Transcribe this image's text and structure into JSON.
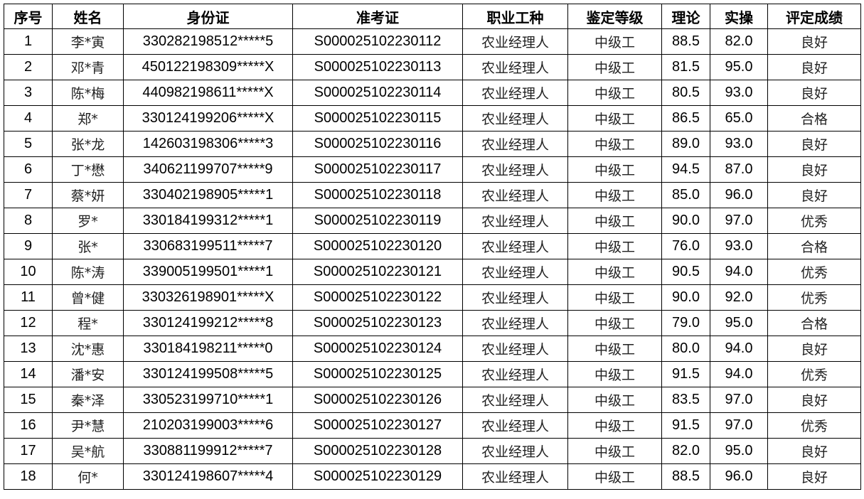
{
  "headers": [
    "序号",
    "姓名",
    "身份证",
    "准考证",
    "职业工种",
    "鉴定等级",
    "理论",
    "实操",
    "评定成绩"
  ],
  "rows": [
    [
      "1",
      "李*寅",
      "330282198512*****5",
      "S000025102230112",
      "农业经理人",
      "中级工",
      "88.5",
      "82.0",
      "良好"
    ],
    [
      "2",
      "邓*青",
      "450122198309*****X",
      "S000025102230113",
      "农业经理人",
      "中级工",
      "81.5",
      "95.0",
      "良好"
    ],
    [
      "3",
      "陈*梅",
      "440982198611*****X",
      "S000025102230114",
      "农业经理人",
      "中级工",
      "80.5",
      "93.0",
      "良好"
    ],
    [
      "4",
      "郑*",
      "330124199206*****X",
      "S000025102230115",
      "农业经理人",
      "中级工",
      "86.5",
      "65.0",
      "合格"
    ],
    [
      "5",
      "张*龙",
      "142603198306*****3",
      "S000025102230116",
      "农业经理人",
      "中级工",
      "89.0",
      "93.0",
      "良好"
    ],
    [
      "6",
      "丁*懋",
      "340621199707*****9",
      "S000025102230117",
      "农业经理人",
      "中级工",
      "94.5",
      "87.0",
      "良好"
    ],
    [
      "7",
      "蔡*妍",
      "330402198905*****1",
      "S000025102230118",
      "农业经理人",
      "中级工",
      "85.0",
      "96.0",
      "良好"
    ],
    [
      "8",
      "罗*",
      "330184199312*****1",
      "S000025102230119",
      "农业经理人",
      "中级工",
      "90.0",
      "97.0",
      "优秀"
    ],
    [
      "9",
      "张*",
      "330683199511*****7",
      "S000025102230120",
      "农业经理人",
      "中级工",
      "76.0",
      "93.0",
      "合格"
    ],
    [
      "10",
      "陈*涛",
      "339005199501*****1",
      "S000025102230121",
      "农业经理人",
      "中级工",
      "90.5",
      "94.0",
      "优秀"
    ],
    [
      "11",
      "曾*健",
      "330326198901*****X",
      "S000025102230122",
      "农业经理人",
      "中级工",
      "90.0",
      "92.0",
      "优秀"
    ],
    [
      "12",
      "程*",
      "330124199212*****8",
      "S000025102230123",
      "农业经理人",
      "中级工",
      "79.0",
      "95.0",
      "合格"
    ],
    [
      "13",
      "沈*惠",
      "330184198211*****0",
      "S000025102230124",
      "农业经理人",
      "中级工",
      "80.0",
      "94.0",
      "良好"
    ],
    [
      "14",
      "潘*安",
      "330124199508*****5",
      "S000025102230125",
      "农业经理人",
      "中级工",
      "91.5",
      "94.0",
      "优秀"
    ],
    [
      "15",
      "秦*泽",
      "330523199710*****1",
      "S000025102230126",
      "农业经理人",
      "中级工",
      "83.5",
      "97.0",
      "良好"
    ],
    [
      "16",
      "尹*慧",
      "210203199003*****6",
      "S000025102230127",
      "农业经理人",
      "中级工",
      "91.5",
      "97.0",
      "优秀"
    ],
    [
      "17",
      "吴*航",
      "330881199912*****7",
      "S000025102230128",
      "农业经理人",
      "中级工",
      "82.0",
      "95.0",
      "良好"
    ],
    [
      "18",
      "何*",
      "330124198607*****4",
      "S000025102230129",
      "农业经理人",
      "中级工",
      "88.5",
      "96.0",
      "良好"
    ]
  ]
}
